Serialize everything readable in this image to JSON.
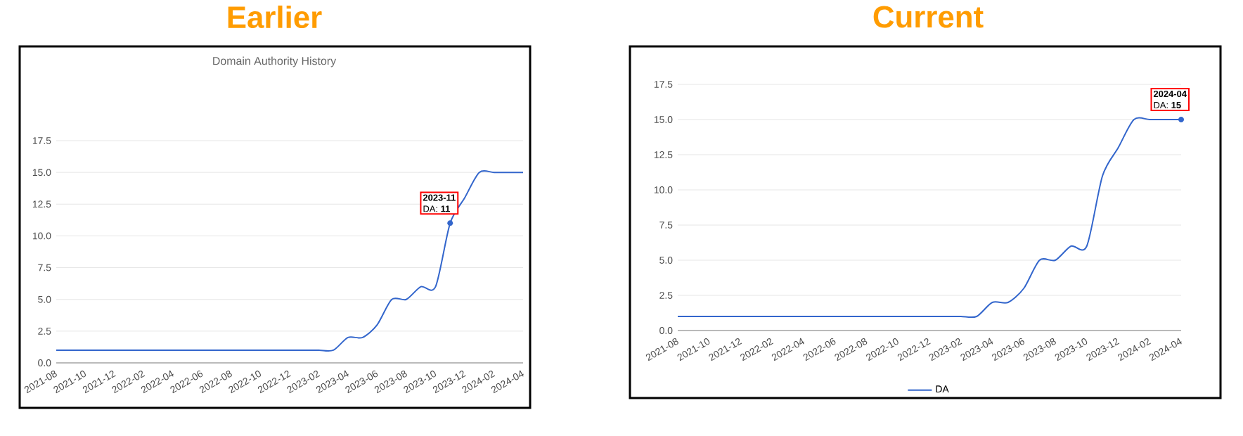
{
  "chart_data": [
    {
      "type": "line",
      "title": "Earlier",
      "subtitle": "Domain Authority History",
      "x": [
        "2021-08",
        "2021-09",
        "2021-10",
        "2021-11",
        "2021-12",
        "2022-01",
        "2022-02",
        "2022-03",
        "2022-04",
        "2022-05",
        "2022-06",
        "2022-07",
        "2022-08",
        "2022-09",
        "2022-10",
        "2022-11",
        "2022-12",
        "2023-01",
        "2023-02",
        "2023-03",
        "2023-04",
        "2023-05",
        "2023-06",
        "2023-07",
        "2023-08",
        "2023-09",
        "2023-10",
        "2023-11",
        "2023-12",
        "2024-01",
        "2024-02",
        "2024-03",
        "2024-04"
      ],
      "series": [
        {
          "color": "#3366cc",
          "values": [
            1,
            1,
            1,
            1,
            1,
            1,
            1,
            1,
            1,
            1,
            1,
            1,
            1,
            1,
            1,
            1,
            1,
            1,
            1,
            1,
            2,
            2,
            3,
            5,
            5,
            6,
            6,
            11,
            13,
            15,
            15,
            15,
            15
          ]
        }
      ],
      "xlim": [
        "2021-08",
        "2024-04"
      ],
      "xticks": [
        "2021-08",
        "2021-10",
        "2021-12",
        "2022-02",
        "2022-04",
        "2022-06",
        "2022-08",
        "2022-10",
        "2022-12",
        "2023-02",
        "2023-04",
        "2023-06",
        "2023-08",
        "2023-10",
        "2023-12",
        "2024-02",
        "2024-04"
      ],
      "ylim": [
        0,
        17.5
      ],
      "yticks": [
        {
          "value": 0,
          "label": "0.0"
        },
        2.5,
        {
          "value": 5,
          "label": "5.0"
        },
        7.5,
        {
          "value": 10,
          "label": "10.0"
        },
        12.5,
        {
          "value": 15,
          "label": "15.0"
        },
        17.5
      ],
      "grid": "y",
      "annotations": [
        {
          "text": "2023-11",
          "x": "2023-11",
          "y": 11
        },
        {
          "text": "DA: **11**",
          "x": "2023-11",
          "y": 11
        }
      ]
    },
    {
      "type": "line",
      "title": "Current",
      "x": [
        "2021-08",
        "2021-09",
        "2021-10",
        "2021-11",
        "2021-12",
        "2022-01",
        "2022-02",
        "2022-03",
        "2022-04",
        "2022-05",
        "2022-06",
        "2022-07",
        "2022-08",
        "2022-09",
        "2022-10",
        "2022-11",
        "2022-12",
        "2023-01",
        "2023-02",
        "2023-03",
        "2023-04",
        "2023-05",
        "2023-06",
        "2023-07",
        "2023-08",
        "2023-09",
        "2023-10",
        "2023-11",
        "2023-12",
        "2024-01",
        "2024-02",
        "2024-03",
        "2024-04"
      ],
      "series": [
        {
          "name": "DA",
          "color": "#3366cc",
          "values": [
            1,
            1,
            1,
            1,
            1,
            1,
            1,
            1,
            1,
            1,
            1,
            1,
            1,
            1,
            1,
            1,
            1,
            1,
            1,
            1,
            2,
            2,
            3,
            5,
            5,
            6,
            6,
            11,
            13,
            15,
            15,
            15,
            15
          ]
        }
      ],
      "xlim": [
        "2021-08",
        "2024-04"
      ],
      "xticks": [
        "2021-08",
        "2021-10",
        "2021-12",
        "2022-02",
        "2022-04",
        "2022-06",
        "2022-08",
        "2022-10",
        "2022-12",
        "2023-02",
        "2023-04",
        "2023-06",
        "2023-08",
        "2023-10",
        "2023-12",
        "2024-02",
        "2024-04"
      ],
      "ylim": [
        0,
        17.5
      ],
      "yticks": [
        {
          "value": 0,
          "label": "0.0"
        },
        2.5,
        {
          "value": 5,
          "label": "5.0"
        },
        7.5,
        {
          "value": 10,
          "label": "10.0"
        },
        12.5,
        {
          "value": 15,
          "label": "15.0"
        },
        17.5
      ],
      "grid": "y",
      "legend": "bottom",
      "annotations": [
        {
          "text": "2024-04",
          "x": "2024-04",
          "y": 15
        },
        {
          "text": "DA: **15**",
          "x": "2024-04",
          "y": 15
        }
      ]
    }
  ]
}
